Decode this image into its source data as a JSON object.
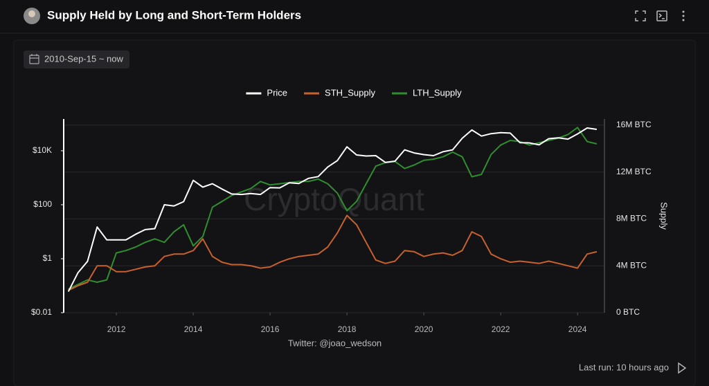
{
  "header": {
    "title": "Supply Held by Long and Short-Term Holders",
    "date_range": "2010-Sep-15 ~ now"
  },
  "chart_data": {
    "type": "line",
    "watermark": "CryptoQuant",
    "source": "Twitter: @joao_wedson",
    "y2label": "Supply",
    "ylog": true,
    "grid": "y2",
    "x": [
      2010.75,
      2011,
      2011.25,
      2011.5,
      2011.75,
      2012,
      2012.25,
      2012.5,
      2012.75,
      2013,
      2013.25,
      2013.5,
      2013.75,
      2014,
      2014.25,
      2014.5,
      2014.75,
      2015,
      2015.25,
      2015.5,
      2015.75,
      2016,
      2016.25,
      2016.5,
      2016.75,
      2017,
      2017.25,
      2017.5,
      2017.75,
      2018,
      2018.25,
      2018.5,
      2018.75,
      2019,
      2019.25,
      2019.5,
      2019.75,
      2020,
      2020.25,
      2020.5,
      2020.75,
      2021,
      2021.25,
      2021.5,
      2021.75,
      2022,
      2022.25,
      2022.5,
      2022.75,
      2023,
      2023.25,
      2023.5,
      2023.75,
      2024,
      2024.25,
      2024.5
    ],
    "xlim": [
      2010.63,
      2024.7
    ],
    "xticks": [
      2012,
      2014,
      2016,
      2018,
      2020,
      2022,
      2024
    ],
    "ylim": [
      0.01,
      126000
    ],
    "yticks": [
      {
        "value": 0.01,
        "label": "$0.01"
      },
      {
        "value": 1,
        "label": "$1"
      },
      {
        "value": 100,
        "label": "$100"
      },
      {
        "value": 10000,
        "label": "$10K"
      }
    ],
    "y2lim": [
      0,
      16350000
    ],
    "y2ticks": [
      {
        "value": 0,
        "label": "0 BTC"
      },
      {
        "value": 4000000,
        "label": "4M BTC"
      },
      {
        "value": 8000000,
        "label": "8M BTC"
      },
      {
        "value": 12000000,
        "label": "12M BTC"
      },
      {
        "value": 16000000,
        "label": "16M BTC"
      }
    ],
    "series": [
      {
        "name": "Price",
        "color": "#ffffff",
        "values": [
          0.06,
          0.3,
          0.8,
          15,
          5,
          5,
          5,
          8,
          12,
          13,
          100,
          90,
          130,
          800,
          450,
          600,
          380,
          250,
          240,
          260,
          240,
          430,
          420,
          650,
          610,
          950,
          1100,
          2500,
          4300,
          14000,
          7000,
          6400,
          6600,
          3700,
          4100,
          10800,
          8300,
          7200,
          6600,
          9200,
          10800,
          29000,
          59000,
          35000,
          43000,
          47000,
          45000,
          20000,
          19500,
          16500,
          28000,
          30000,
          27000,
          42000,
          70000,
          62000
        ]
      },
      {
        "name": "STH_Supply",
        "color": "#c8612c",
        "axis": "y2",
        "values": [
          1900000,
          2300000,
          2600000,
          4000000,
          4000000,
          3500000,
          3500000,
          3700000,
          3900000,
          4000000,
          4800000,
          5000000,
          5000000,
          5300000,
          6300000,
          4800000,
          4300000,
          4100000,
          4100000,
          4000000,
          3800000,
          3900000,
          4300000,
          4600000,
          4800000,
          4900000,
          5000000,
          5600000,
          6800000,
          8300000,
          7500000,
          6000000,
          4500000,
          4200000,
          4400000,
          5300000,
          5200000,
          4800000,
          5000000,
          5100000,
          4900000,
          5300000,
          6900000,
          6500000,
          5000000,
          4600000,
          4300000,
          4400000,
          4300000,
          4200000,
          4400000,
          4200000,
          4000000,
          3800000,
          5000000,
          5200000
        ]
      },
      {
        "name": "LTH_Supply",
        "color": "#2f8f2f",
        "axis": "y2",
        "values": [
          2000000,
          2400000,
          2800000,
          2600000,
          2800000,
          5100000,
          5300000,
          5600000,
          6000000,
          6300000,
          6000000,
          6900000,
          7500000,
          5700000,
          6500000,
          9000000,
          9500000,
          10000000,
          10300000,
          10600000,
          11200000,
          10900000,
          11000000,
          11100000,
          11200000,
          11200000,
          11400000,
          11000000,
          10200000,
          8700000,
          9500000,
          11000000,
          12500000,
          12800000,
          12900000,
          12300000,
          12600000,
          13000000,
          13100000,
          13300000,
          13700000,
          13300000,
          11600000,
          11800000,
          13500000,
          14300000,
          14700000,
          14600000,
          14300000,
          14500000,
          14700000,
          14900000,
          15200000,
          15800000,
          14600000,
          14400000
        ]
      }
    ]
  },
  "footer": {
    "last_run": "Last run: 10 hours ago"
  }
}
